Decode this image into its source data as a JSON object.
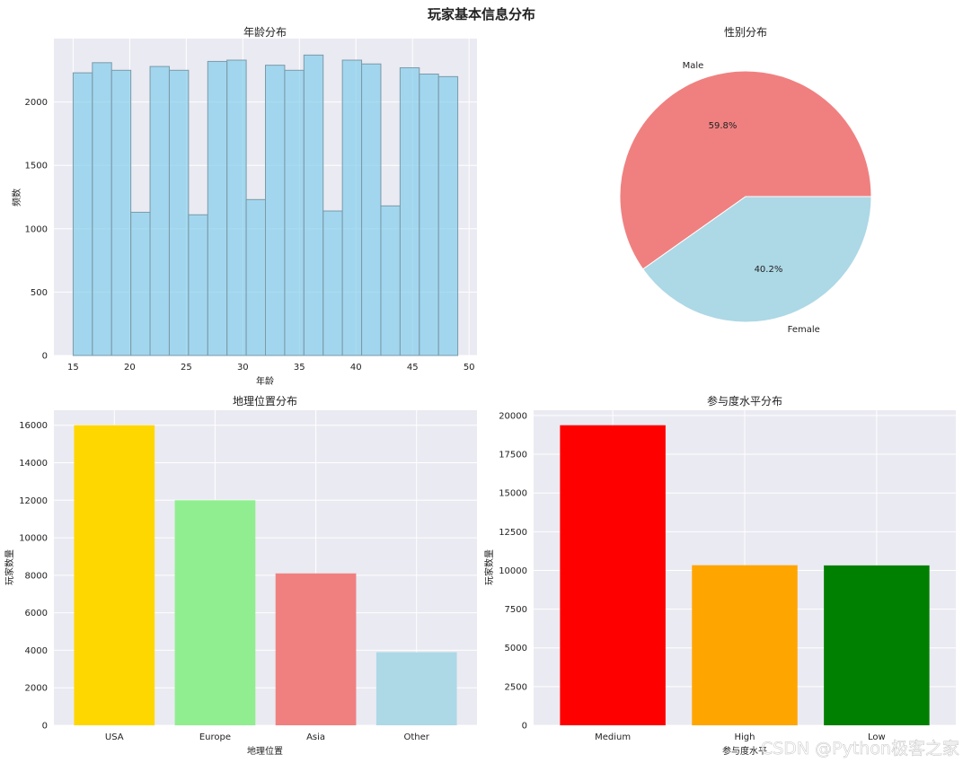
{
  "figure": {
    "suptitle": "玩家基本信息分布",
    "watermark": "CSDN @Python极客之家",
    "background_panel": "#eaeaf2"
  },
  "chart_data": [
    {
      "type": "bar",
      "subtype": "histogram",
      "title": "年龄分布",
      "xlabel": "年龄",
      "ylabel": "频数",
      "bin_edges": [
        15,
        16.7,
        18.4,
        20.1,
        21.8,
        23.5,
        25.2,
        26.9,
        28.6,
        30.3,
        32.0,
        33.7,
        35.4,
        37.1,
        38.8,
        40.5,
        42.2,
        43.9,
        45.6,
        47.3,
        49.0
      ],
      "values": [
        2230,
        2310,
        2250,
        1130,
        2280,
        2250,
        1110,
        2320,
        2330,
        1230,
        2290,
        2250,
        2370,
        1140,
        2330,
        2300,
        1180,
        2270,
        2220,
        2200
      ],
      "xticks": [
        15,
        20,
        25,
        30,
        35,
        40,
        45,
        50
      ],
      "yticks": [
        0,
        500,
        1000,
        1500,
        2000
      ],
      "xlim": [
        13.3,
        50.7
      ],
      "ylim": [
        0,
        2500
      ],
      "color": "#87ceeb",
      "edge_color": "#7a9aa8",
      "grid": true
    },
    {
      "type": "pie",
      "title": "性别分布",
      "labels": [
        "Male",
        "Female"
      ],
      "values": [
        59.8,
        40.2
      ],
      "pct_labels": [
        "59.8%",
        "40.2%"
      ],
      "colors": [
        "#f08080",
        "#add8e6"
      ]
    },
    {
      "type": "bar",
      "title": "地理位置分布",
      "xlabel": "地理位置",
      "ylabel": "玩家数量",
      "categories": [
        "USA",
        "Europe",
        "Asia",
        "Other"
      ],
      "values": [
        16000,
        12000,
        8100,
        3900
      ],
      "colors": [
        "#ffd700",
        "#90ee90",
        "#f08080",
        "#add8e6"
      ],
      "yticks": [
        0,
        2000,
        4000,
        6000,
        8000,
        10000,
        12000,
        14000,
        16000
      ],
      "ylim": [
        0,
        16800
      ],
      "grid": true
    },
    {
      "type": "bar",
      "title": "参与度水平分布",
      "xlabel": "参与度水平",
      "ylabel": "玩家数量",
      "categories": [
        "Medium",
        "High",
        "Low"
      ],
      "values": [
        19374,
        10336,
        10324
      ],
      "colors": [
        "#ff0000",
        "#ffa500",
        "#008000"
      ],
      "yticks": [
        0,
        2500,
        5000,
        7500,
        10000,
        12500,
        15000,
        17500,
        20000
      ],
      "ylim": [
        0,
        20343
      ],
      "grid": true
    }
  ]
}
